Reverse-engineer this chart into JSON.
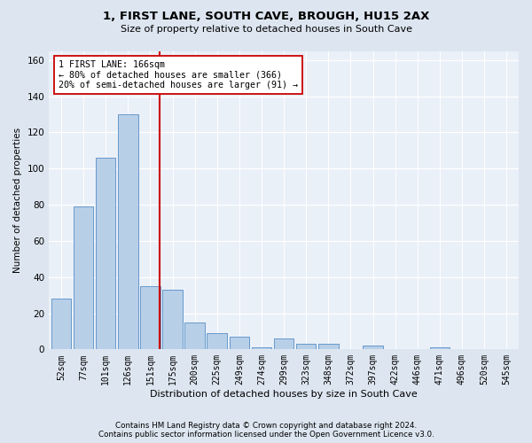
{
  "title1": "1, FIRST LANE, SOUTH CAVE, BROUGH, HU15 2AX",
  "title2": "Size of property relative to detached houses in South Cave",
  "xlabel": "Distribution of detached houses by size in South Cave",
  "ylabel": "Number of detached properties",
  "categories": [
    "52sqm",
    "77sqm",
    "101sqm",
    "126sqm",
    "151sqm",
    "175sqm",
    "200sqm",
    "225sqm",
    "249sqm",
    "274sqm",
    "299sqm",
    "323sqm",
    "348sqm",
    "372sqm",
    "397sqm",
    "422sqm",
    "446sqm",
    "471sqm",
    "496sqm",
    "520sqm",
    "545sqm"
  ],
  "values": [
    28,
    79,
    106,
    130,
    35,
    33,
    15,
    9,
    7,
    1,
    6,
    3,
    3,
    0,
    2,
    0,
    0,
    1,
    0,
    0,
    0
  ],
  "bar_color": "#b8cfe8",
  "bar_edge_color": "#6699cc",
  "vline_x": 4.42,
  "vline_color": "#cc0000",
  "annotation_text": "1 FIRST LANE: 166sqm\n← 80% of detached houses are smaller (366)\n20% of semi-detached houses are larger (91) →",
  "annotation_box_color": "#ffffff",
  "annotation_box_edge": "#cc0000",
  "ylim": [
    0,
    165
  ],
  "yticks": [
    0,
    20,
    40,
    60,
    80,
    100,
    120,
    140,
    160
  ],
  "footer1": "Contains HM Land Registry data © Crown copyright and database right 2024.",
  "footer2": "Contains public sector information licensed under the Open Government Licence v3.0.",
  "bg_color": "#dde6f0",
  "plot_bg": "#eaf0f8",
  "fig_width": 6.0,
  "fig_height": 5.0,
  "title1_fontsize": 9.5,
  "title2_fontsize": 8.0
}
